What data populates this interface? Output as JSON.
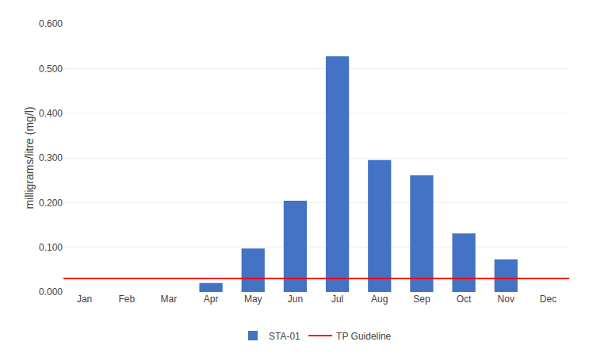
{
  "chart_data": {
    "type": "bar",
    "categories": [
      "Jan",
      "Feb",
      "Mar",
      "Apr",
      "May",
      "Jun",
      "Jul",
      "Aug",
      "Sep",
      "Oct",
      "Nov",
      "Dec"
    ],
    "series": [
      {
        "name": "STA-01",
        "color": "#4472C4",
        "values": [
          0.0,
          0.0,
          0.0,
          0.02,
          0.097,
          0.204,
          0.527,
          0.295,
          0.261,
          0.131,
          0.073,
          0.0
        ]
      }
    ],
    "guideline": {
      "name": "TP Guideline",
      "value": 0.03,
      "color": "#FF0000"
    },
    "ylabel": "milligrams/litre (mg/l)",
    "ylim": [
      0.0,
      0.6
    ],
    "yticks": [
      {
        "value": 0.0,
        "label": "0.000"
      },
      {
        "value": 0.1,
        "label": "0.100"
      },
      {
        "value": 0.2,
        "label": "0.200"
      },
      {
        "value": 0.3,
        "label": "0.300"
      },
      {
        "value": 0.4,
        "label": "0.400"
      },
      {
        "value": 0.5,
        "label": "0.500"
      },
      {
        "value": 0.6,
        "label": "0.600"
      }
    ],
    "grid": true,
    "legend": "bottom"
  }
}
